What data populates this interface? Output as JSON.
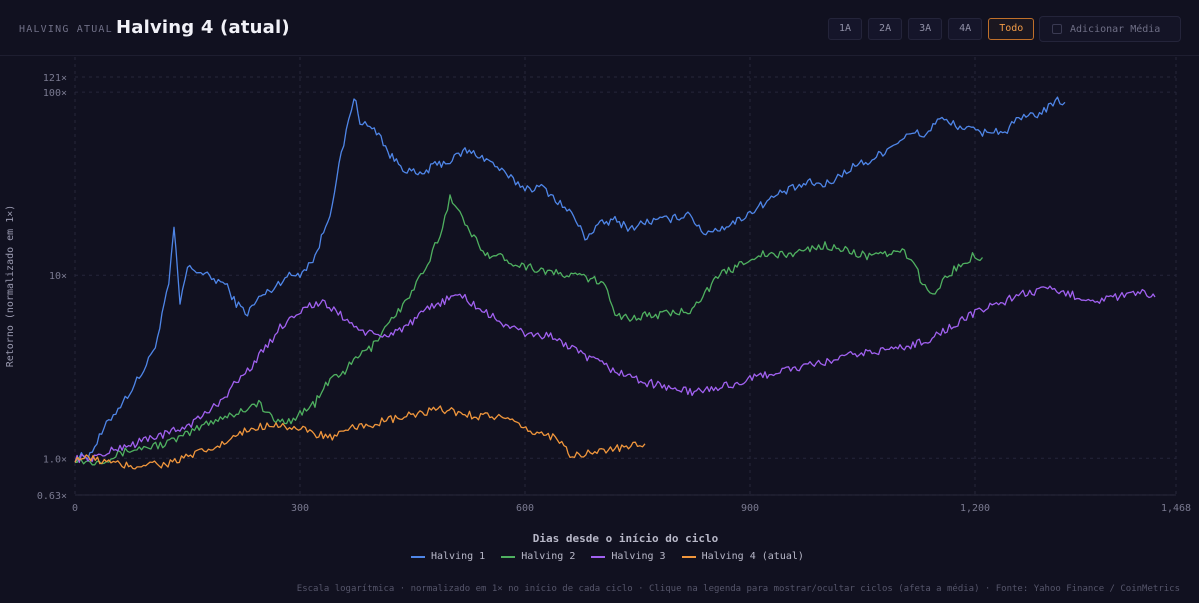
{
  "header": {
    "kicker": "HALVING ATUAL",
    "title": "Halving 4 (atual)",
    "ranges": [
      {
        "label": "1A",
        "active": false
      },
      {
        "label": "2A",
        "active": false
      },
      {
        "label": "3A",
        "active": false
      },
      {
        "label": "4A",
        "active": false
      },
      {
        "label": "Todo",
        "active": true
      }
    ],
    "add_average": {
      "label": "Adicionar Média",
      "checked": false
    }
  },
  "footnote": "Escala logarítmica · normalizado em 1× no início de cada ciclo · Clique na legenda para mostrar/ocultar ciclos (afeta a média) · Fonte: Yahoo Finance / CoinMetrics",
  "chart_data": {
    "type": "line",
    "xlabel": "Dias desde o início do ciclo",
    "ylabel": "Retorno (normalizado em 1×)",
    "y_scale": "log",
    "xlim": [
      0,
      1468
    ],
    "ylim": [
      0.63,
      121
    ],
    "x_ticks": [
      0,
      300,
      600,
      900,
      1200,
      1468
    ],
    "x_tick_labels": [
      "0",
      "300",
      "600",
      "900",
      "1,200",
      "1,468"
    ],
    "y_ticks": [
      0.63,
      1.0,
      10,
      100,
      121
    ],
    "y_tick_labels": [
      "0.63×",
      "1.0×",
      "10×",
      "100×",
      "121×"
    ],
    "grid": true,
    "legend_position": "bottom-center",
    "series": [
      {
        "name": "Halving 1",
        "color": "#4f86e8",
        "points": [
          [
            0,
            1.0
          ],
          [
            20,
            1.05
          ],
          [
            45,
            1.6
          ],
          [
            70,
            2.2
          ],
          [
            95,
            3.2
          ],
          [
            110,
            4.5
          ],
          [
            125,
            9
          ],
          [
            132,
            18
          ],
          [
            140,
            7
          ],
          [
            150,
            11
          ],
          [
            165,
            10.5
          ],
          [
            185,
            9.5
          ],
          [
            200,
            9
          ],
          [
            215,
            7
          ],
          [
            230,
            6.2
          ],
          [
            245,
            7.5
          ],
          [
            265,
            8.5
          ],
          [
            280,
            9.8
          ],
          [
            300,
            10.2
          ],
          [
            320,
            12.5
          ],
          [
            340,
            22
          ],
          [
            355,
            45
          ],
          [
            365,
            70
          ],
          [
            372,
            95
          ],
          [
            380,
            70
          ],
          [
            390,
            65
          ],
          [
            405,
            60
          ],
          [
            420,
            45
          ],
          [
            440,
            38
          ],
          [
            460,
            35
          ],
          [
            480,
            40
          ],
          [
            500,
            42
          ],
          [
            520,
            48
          ],
          [
            540,
            45
          ],
          [
            560,
            40
          ],
          [
            575,
            35
          ],
          [
            600,
            30
          ],
          [
            625,
            30
          ],
          [
            650,
            24
          ],
          [
            665,
            21
          ],
          [
            680,
            16
          ],
          [
            700,
            19
          ],
          [
            720,
            20
          ],
          [
            740,
            18
          ],
          [
            760,
            19.5
          ],
          [
            780,
            20
          ],
          [
            800,
            20.5
          ],
          [
            820,
            22
          ],
          [
            835,
            17
          ],
          [
            860,
            18
          ],
          [
            880,
            19.5
          ],
          [
            900,
            22
          ],
          [
            920,
            25
          ],
          [
            940,
            28
          ],
          [
            960,
            30
          ],
          [
            980,
            32
          ],
          [
            1000,
            31
          ],
          [
            1020,
            35
          ],
          [
            1040,
            40
          ],
          [
            1060,
            42
          ],
          [
            1080,
            48
          ],
          [
            1100,
            55
          ],
          [
            1120,
            60
          ],
          [
            1135,
            58
          ],
          [
            1150,
            72
          ],
          [
            1165,
            68
          ],
          [
            1180,
            65
          ],
          [
            1195,
            62
          ],
          [
            1210,
            60
          ],
          [
            1225,
            62
          ],
          [
            1240,
            60
          ],
          [
            1255,
            70
          ],
          [
            1265,
            72
          ],
          [
            1280,
            75
          ],
          [
            1295,
            80
          ],
          [
            1310,
            90
          ],
          [
            1320,
            88
          ]
        ]
      },
      {
        "name": "Halving 2",
        "color": "#4fb060",
        "points": [
          [
            0,
            1.0
          ],
          [
            20,
            0.95
          ],
          [
            45,
            1.0
          ],
          [
            70,
            1.1
          ],
          [
            95,
            1.15
          ],
          [
            120,
            1.2
          ],
          [
            150,
            1.35
          ],
          [
            175,
            1.55
          ],
          [
            200,
            1.7
          ],
          [
            215,
            1.75
          ],
          [
            230,
            1.9
          ],
          [
            245,
            2.0
          ],
          [
            265,
            1.6
          ],
          [
            285,
            1.6
          ],
          [
            300,
            1.75
          ],
          [
            320,
            2.0
          ],
          [
            340,
            2.7
          ],
          [
            360,
            3.0
          ],
          [
            380,
            3.7
          ],
          [
            395,
            4.0
          ],
          [
            410,
            5.0
          ],
          [
            425,
            6.0
          ],
          [
            440,
            7.0
          ],
          [
            455,
            9.0
          ],
          [
            470,
            11.0
          ],
          [
            480,
            14.5
          ],
          [
            490,
            18.0
          ],
          [
            500,
            27.0
          ],
          [
            510,
            24.0
          ],
          [
            520,
            18.5
          ],
          [
            535,
            15.5
          ],
          [
            550,
            13.0
          ],
          [
            570,
            12.5
          ],
          [
            590,
            11.5
          ],
          [
            610,
            11.0
          ],
          [
            630,
            10.5
          ],
          [
            650,
            10.0
          ],
          [
            670,
            10.0
          ],
          [
            690,
            9.5
          ],
          [
            710,
            8.5
          ],
          [
            720,
            6.2
          ],
          [
            740,
            5.8
          ],
          [
            760,
            6.0
          ],
          [
            780,
            6.1
          ],
          [
            800,
            6.2
          ],
          [
            820,
            6.5
          ],
          [
            840,
            8.0
          ],
          [
            860,
            10.0
          ],
          [
            880,
            11.0
          ],
          [
            900,
            12.5
          ],
          [
            920,
            13.0
          ],
          [
            940,
            12.8
          ],
          [
            960,
            13.2
          ],
          [
            980,
            14.0
          ],
          [
            1000,
            14.5
          ],
          [
            1015,
            14.2
          ],
          [
            1030,
            13.5
          ],
          [
            1050,
            13.0
          ],
          [
            1065,
            12.5
          ],
          [
            1080,
            13.0
          ],
          [
            1100,
            13.5
          ],
          [
            1115,
            12.5
          ],
          [
            1130,
            9.0
          ],
          [
            1140,
            7.8
          ],
          [
            1150,
            8.5
          ],
          [
            1160,
            9.5
          ],
          [
            1175,
            11.0
          ],
          [
            1190,
            12.0
          ],
          [
            1200,
            13.0
          ],
          [
            1210,
            12.5
          ]
        ]
      },
      {
        "name": "Halving 3",
        "color": "#a161f0",
        "points": [
          [
            0,
            1.0
          ],
          [
            20,
            1.0
          ],
          [
            40,
            1.05
          ],
          [
            60,
            1.15
          ],
          [
            80,
            1.2
          ],
          [
            100,
            1.3
          ],
          [
            120,
            1.35
          ],
          [
            140,
            1.45
          ],
          [
            155,
            1.55
          ],
          [
            170,
            1.7
          ],
          [
            185,
            1.9
          ],
          [
            200,
            2.2
          ],
          [
            215,
            2.6
          ],
          [
            230,
            3.0
          ],
          [
            245,
            3.6
          ],
          [
            260,
            4.3
          ],
          [
            270,
            5.0
          ],
          [
            280,
            5.5
          ],
          [
            295,
            6.2
          ],
          [
            310,
            6.8
          ],
          [
            330,
            7.0
          ],
          [
            345,
            6.5
          ],
          [
            360,
            5.8
          ],
          [
            375,
            5.2
          ],
          [
            390,
            4.8
          ],
          [
            410,
            4.6
          ],
          [
            430,
            5.0
          ],
          [
            450,
            5.5
          ],
          [
            470,
            6.5
          ],
          [
            490,
            7.2
          ],
          [
            510,
            7.8
          ],
          [
            520,
            7.5
          ],
          [
            540,
            6.5
          ],
          [
            560,
            5.8
          ],
          [
            580,
            5.2
          ],
          [
            600,
            4.8
          ],
          [
            620,
            4.7
          ],
          [
            640,
            4.6
          ],
          [
            660,
            4.0
          ],
          [
            680,
            3.6
          ],
          [
            700,
            3.3
          ],
          [
            720,
            3.0
          ],
          [
            740,
            2.8
          ],
          [
            760,
            2.6
          ],
          [
            780,
            2.5
          ],
          [
            800,
            2.4
          ],
          [
            820,
            2.3
          ],
          [
            840,
            2.35
          ],
          [
            860,
            2.45
          ],
          [
            880,
            2.55
          ],
          [
            900,
            2.7
          ],
          [
            920,
            2.85
          ],
          [
            940,
            3.0
          ],
          [
            960,
            3.1
          ],
          [
            980,
            3.2
          ],
          [
            1000,
            3.35
          ],
          [
            1020,
            3.5
          ],
          [
            1040,
            3.7
          ],
          [
            1060,
            3.8
          ],
          [
            1080,
            3.9
          ],
          [
            1100,
            4.0
          ],
          [
            1120,
            4.2
          ],
          [
            1140,
            4.5
          ],
          [
            1160,
            5.0
          ],
          [
            1180,
            5.6
          ],
          [
            1200,
            6.2
          ],
          [
            1220,
            6.8
          ],
          [
            1240,
            7.2
          ],
          [
            1255,
            7.8
          ],
          [
            1270,
            8.0
          ],
          [
            1285,
            8.2
          ],
          [
            1300,
            8.3
          ],
          [
            1315,
            8.0
          ],
          [
            1330,
            7.8
          ],
          [
            1345,
            7.5
          ],
          [
            1360,
            7.3
          ],
          [
            1375,
            7.4
          ],
          [
            1390,
            7.6
          ],
          [
            1405,
            7.8
          ],
          [
            1420,
            8.1
          ],
          [
            1435,
            7.5
          ],
          [
            1440,
            7.6
          ]
        ]
      },
      {
        "name": "Halving 4 (atual)",
        "color": "#f0963c",
        "points": [
          [
            0,
            1.0
          ],
          [
            15,
            1.0
          ],
          [
            30,
            0.98
          ],
          [
            45,
            0.95
          ],
          [
            60,
            0.92
          ],
          [
            80,
            0.9
          ],
          [
            100,
            0.95
          ],
          [
            115,
            0.92
          ],
          [
            130,
            0.95
          ],
          [
            145,
            1.0
          ],
          [
            160,
            1.05
          ],
          [
            175,
            1.1
          ],
          [
            190,
            1.15
          ],
          [
            205,
            1.25
          ],
          [
            220,
            1.35
          ],
          [
            235,
            1.45
          ],
          [
            250,
            1.5
          ],
          [
            265,
            1.55
          ],
          [
            280,
            1.5
          ],
          [
            295,
            1.45
          ],
          [
            310,
            1.4
          ],
          [
            325,
            1.35
          ],
          [
            340,
            1.3
          ],
          [
            355,
            1.35
          ],
          [
            370,
            1.45
          ],
          [
            385,
            1.5
          ],
          [
            400,
            1.55
          ],
          [
            415,
            1.6
          ],
          [
            430,
            1.65
          ],
          [
            445,
            1.7
          ],
          [
            460,
            1.75
          ],
          [
            475,
            1.8
          ],
          [
            490,
            1.85
          ],
          [
            505,
            1.8
          ],
          [
            520,
            1.75
          ],
          [
            535,
            1.7
          ],
          [
            550,
            1.72
          ],
          [
            565,
            1.68
          ],
          [
            580,
            1.6
          ],
          [
            595,
            1.45
          ],
          [
            610,
            1.4
          ],
          [
            625,
            1.35
          ],
          [
            640,
            1.3
          ],
          [
            655,
            1.2
          ],
          [
            660,
            1.0
          ],
          [
            675,
            1.05
          ],
          [
            690,
            1.08
          ],
          [
            705,
            1.1
          ],
          [
            720,
            1.12
          ],
          [
            735,
            1.15
          ],
          [
            750,
            1.18
          ],
          [
            760,
            1.2
          ]
        ]
      }
    ]
  }
}
